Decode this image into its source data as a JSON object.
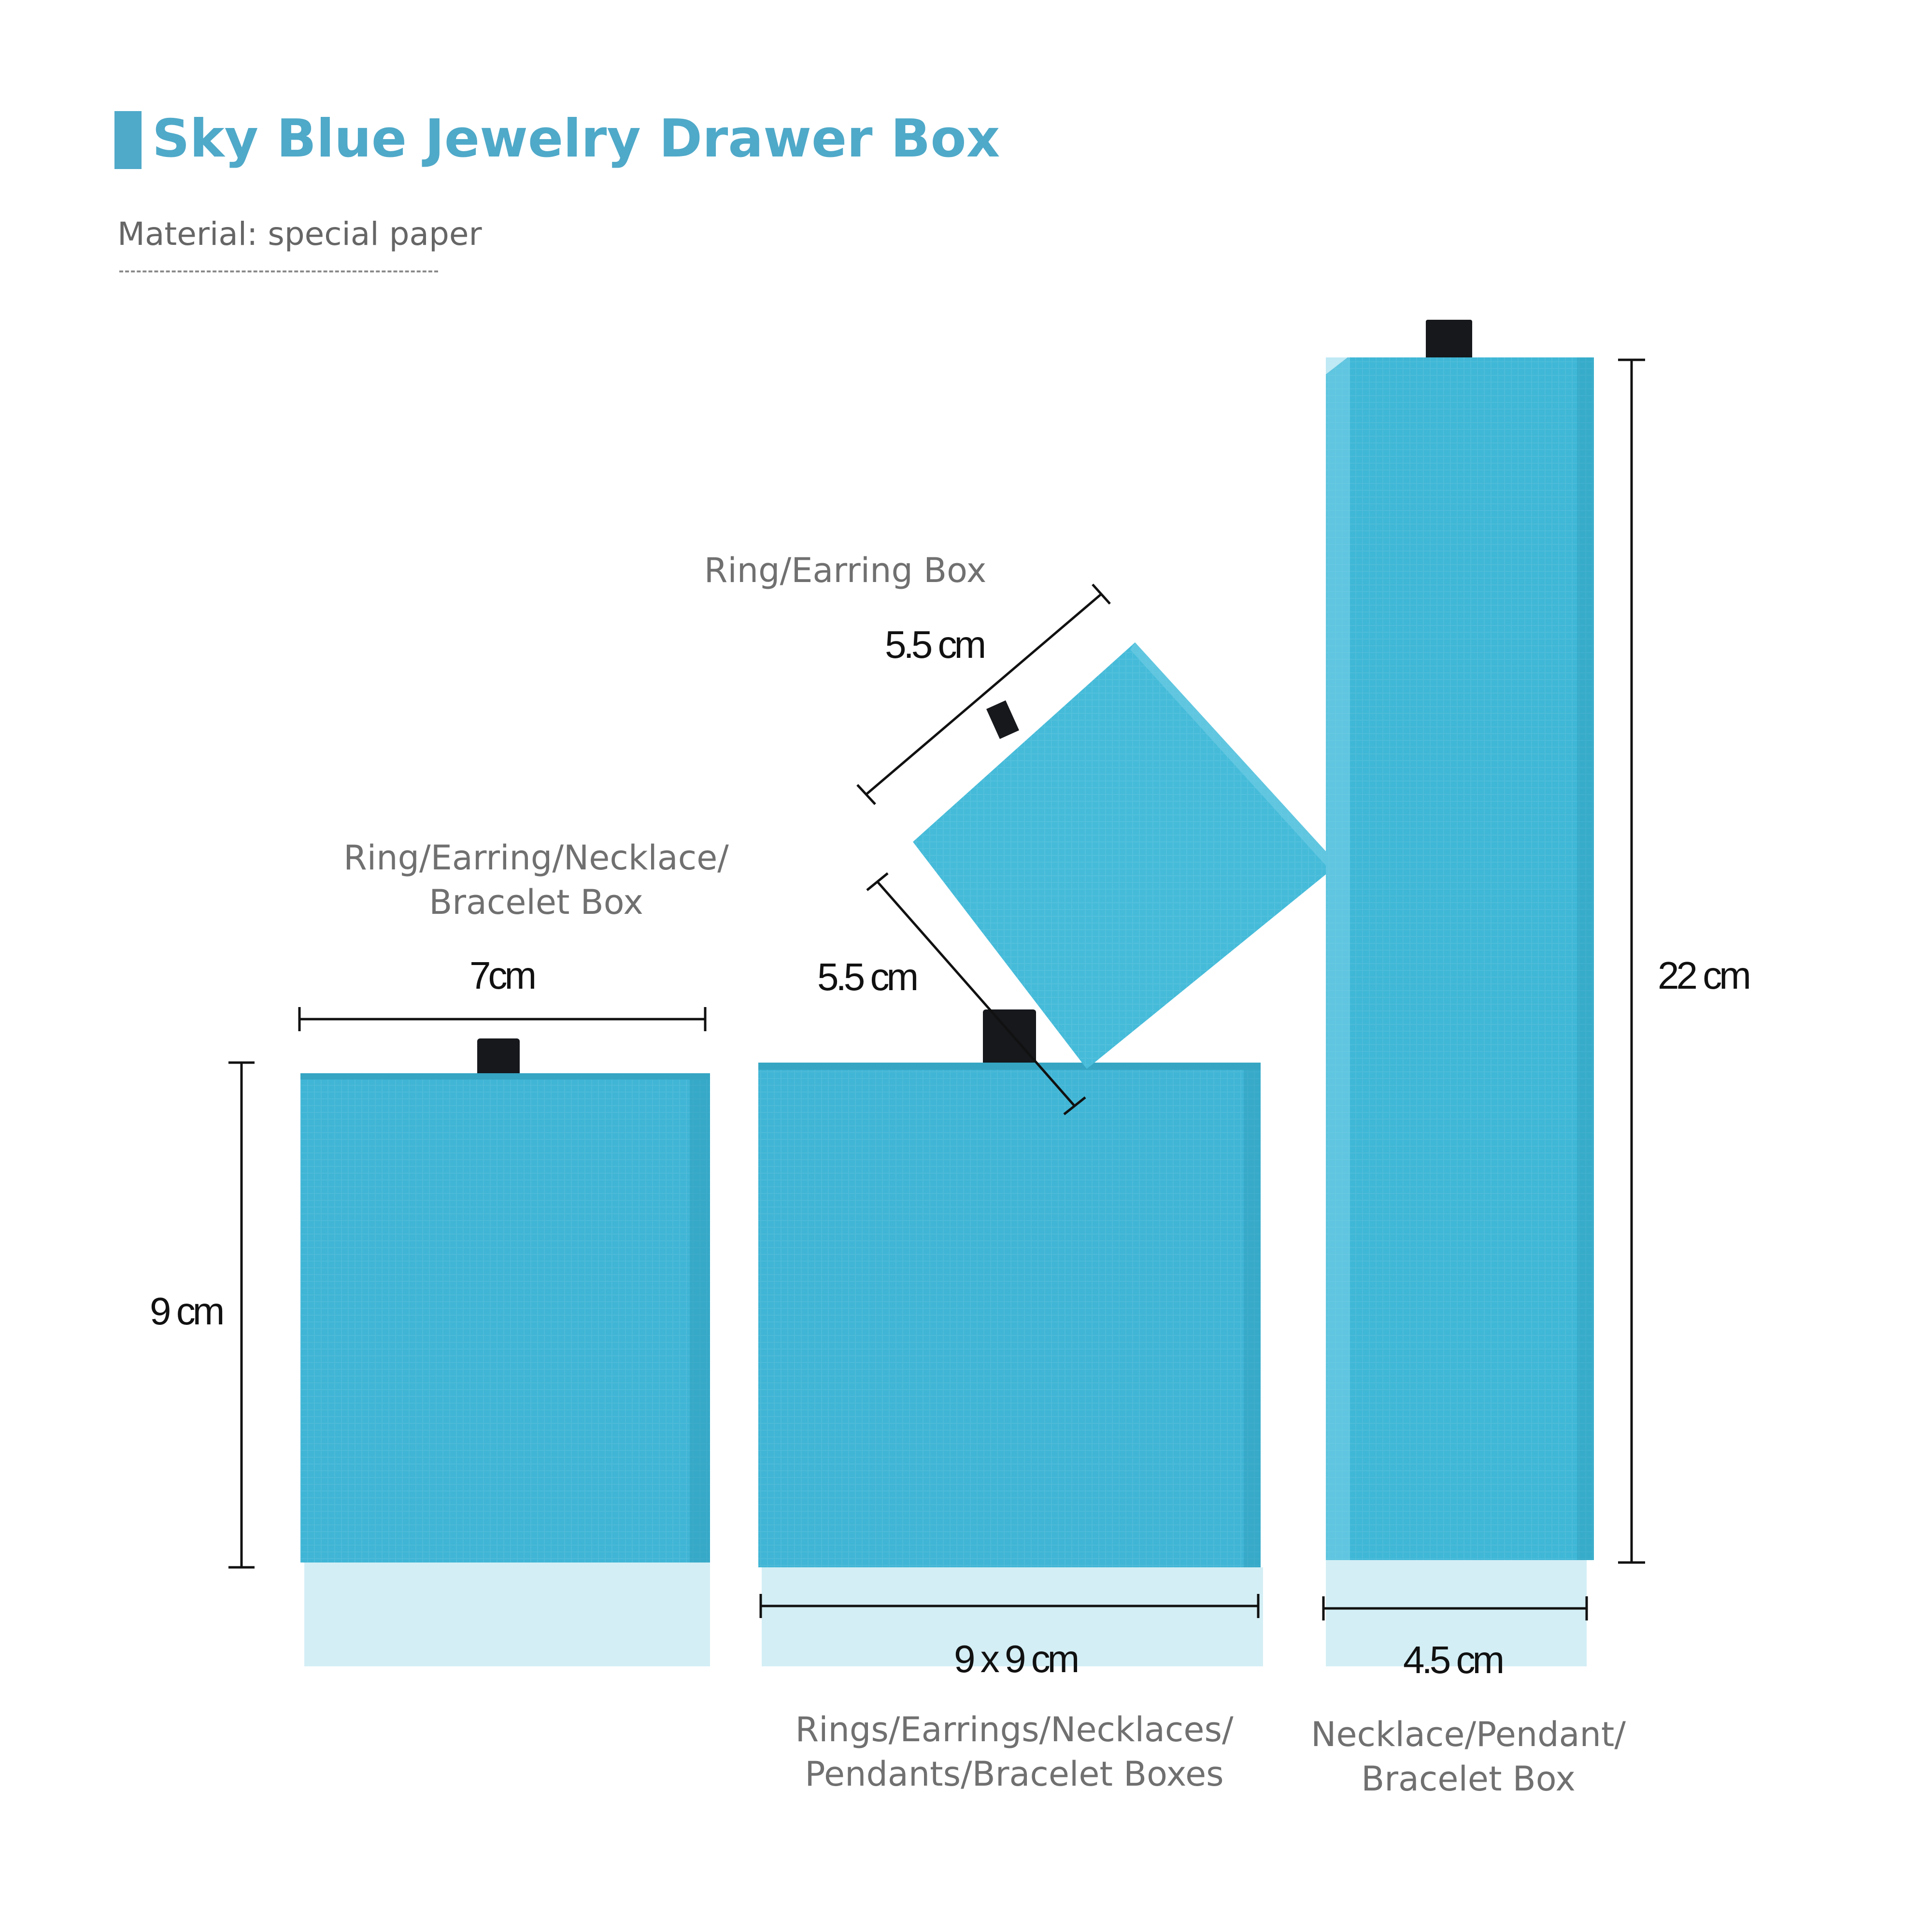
{
  "header": {
    "title": "Sky Blue Jewelry Drawer Box",
    "material": "Material: special paper"
  },
  "colors": {
    "accent": "#4fa9c9",
    "box_blue": "#3fb8d6",
    "box_light": "#d3eef5",
    "tab": "#16181c",
    "label_gray": "#707070"
  },
  "boxes": {
    "small": {
      "label": "Ring/Earring/Necklace/\nBracelet Box",
      "width": "7cm",
      "height": "9 cm"
    },
    "square": {
      "label": "Rings/Earrings/Necklaces/\nPendants/Bracelet Boxes",
      "size": "9 x 9 cm"
    },
    "mini": {
      "label": "Ring/Earring Box",
      "width": "5.5 cm",
      "depth": "5.5 cm"
    },
    "tall": {
      "label": "Necklace/Pendant/\nBracelet Box",
      "width": "4.5 cm",
      "height": "22 cm"
    }
  }
}
